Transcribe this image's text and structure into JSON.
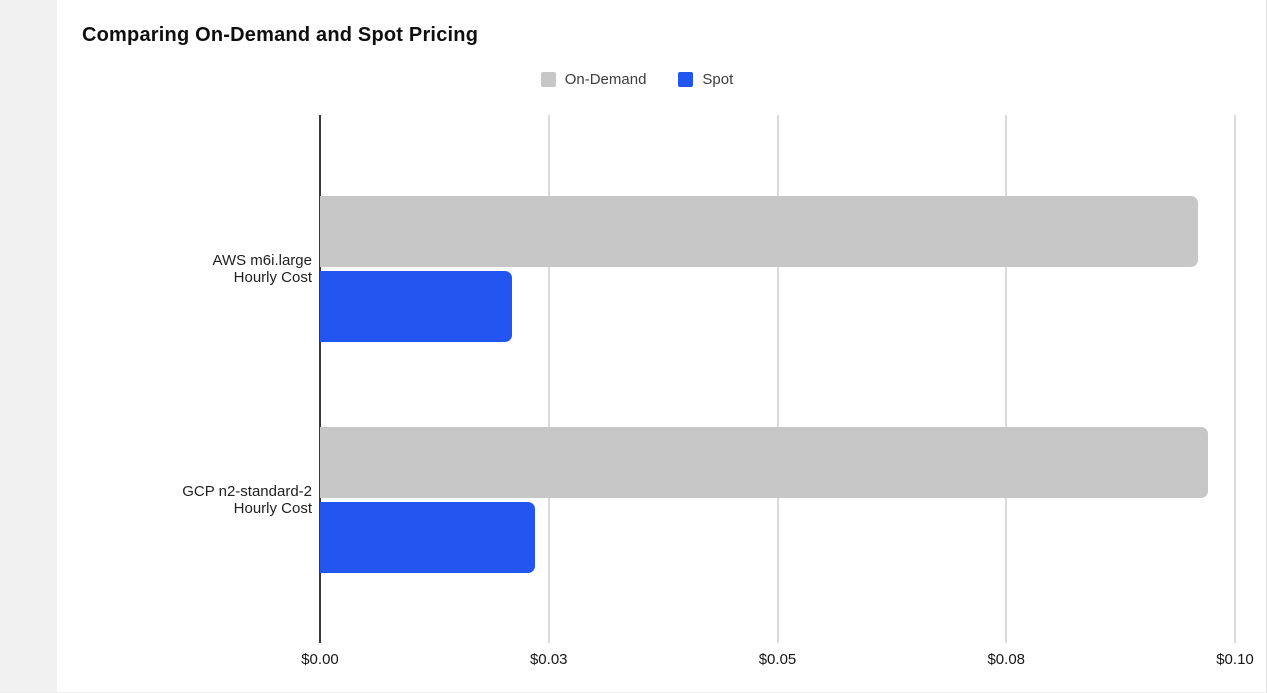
{
  "chart_data": {
    "type": "bar",
    "orientation": "horizontal",
    "title": "Comparing On-Demand and Spot Pricing",
    "categories": [
      [
        "AWS m6i.large",
        "Hourly Cost"
      ],
      [
        "GCP n2-standard-2",
        "Hourly Cost"
      ]
    ],
    "series": [
      {
        "name": "On-Demand",
        "color": "#C7C7C7",
        "values": [
          0.096,
          0.0971
        ]
      },
      {
        "name": "Spot",
        "color": "#2356F0",
        "values": [
          0.021,
          0.0235
        ]
      }
    ],
    "xlim": [
      0,
      0.1
    ],
    "x_ticks": [
      {
        "value": 0.0,
        "label": "$0.00"
      },
      {
        "value": 0.025,
        "label": "$0.03"
      },
      {
        "value": 0.05,
        "label": "$0.05"
      },
      {
        "value": 0.075,
        "label": "$0.08"
      },
      {
        "value": 0.1,
        "label": "$0.10"
      }
    ],
    "grid": true,
    "legend_position": "top",
    "colors": {
      "axis": "#3A3A3A",
      "gridline": "#DADADA",
      "background": "#FFFFFF",
      "sidebar_strip": "#F1F1F1"
    }
  }
}
